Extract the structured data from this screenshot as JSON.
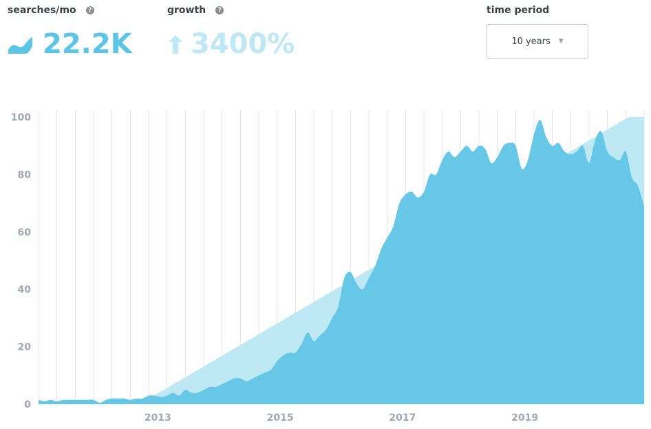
{
  "stats": {
    "searches": {
      "label": "searches/mo",
      "value": "22.2K",
      "help": "?"
    },
    "growth": {
      "label": "growth",
      "value": "3400%",
      "help": "?"
    }
  },
  "time_period": {
    "label": "time period",
    "selected": "10 years"
  },
  "colors": {
    "area": "#66c7e6",
    "trend": "#bfe8f5",
    "grid": "#e4e6ea",
    "axis_text": "#a1a8b3"
  },
  "chart_data": {
    "type": "area",
    "title": "",
    "xlabel": "",
    "ylabel": "",
    "xlim": [
      2011.05,
      2020.95
    ],
    "ylim": [
      0,
      100
    ],
    "yticks": [
      0,
      20,
      40,
      60,
      80,
      100
    ],
    "xticks": [
      {
        "value": 2013,
        "label": "2013"
      },
      {
        "value": 2015,
        "label": "2015"
      },
      {
        "value": 2017,
        "label": "2017"
      },
      {
        "value": 2019,
        "label": "2019"
      }
    ],
    "grid": "vertical",
    "trend_line": {
      "x": [
        2012.7,
        2020.7
      ],
      "y": [
        0,
        100
      ]
    },
    "series": [
      {
        "type": "area",
        "x": [
          2011.05,
          2011.15,
          2011.25,
          2011.35,
          2011.45,
          2011.55,
          2011.65,
          2011.75,
          2011.85,
          2011.95,
          2012.05,
          2012.15,
          2012.25,
          2012.35,
          2012.45,
          2012.55,
          2012.65,
          2012.75,
          2012.85,
          2012.95,
          2013.05,
          2013.15,
          2013.25,
          2013.35,
          2013.45,
          2013.55,
          2013.65,
          2013.75,
          2013.85,
          2013.95,
          2014.05,
          2014.15,
          2014.25,
          2014.35,
          2014.45,
          2014.55,
          2014.65,
          2014.75,
          2014.85,
          2014.95,
          2015.05,
          2015.15,
          2015.25,
          2015.35,
          2015.45,
          2015.55,
          2015.65,
          2015.75,
          2015.85,
          2015.95,
          2016.05,
          2016.15,
          2016.25,
          2016.35,
          2016.45,
          2016.55,
          2016.65,
          2016.75,
          2016.85,
          2016.95,
          2017.05,
          2017.15,
          2017.25,
          2017.35,
          2017.45,
          2017.55,
          2017.65,
          2017.75,
          2017.85,
          2017.95,
          2018.05,
          2018.15,
          2018.25,
          2018.35,
          2018.45,
          2018.55,
          2018.65,
          2018.75,
          2018.85,
          2018.95,
          2019.05,
          2019.15,
          2019.25,
          2019.35,
          2019.45,
          2019.55,
          2019.65,
          2019.75,
          2019.85,
          2019.95,
          2020.05,
          2020.15,
          2020.25,
          2020.35,
          2020.45,
          2020.55,
          2020.65,
          2020.75,
          2020.85,
          2020.95
        ],
        "y": [
          1.5,
          1,
          1.5,
          1,
          1.5,
          1.5,
          1.5,
          1.5,
          1.5,
          1.5,
          0.5,
          1.5,
          2,
          2,
          2,
          1.5,
          2,
          2,
          3,
          3,
          2.5,
          3,
          4,
          3,
          5,
          4,
          4,
          5,
          6,
          6,
          7,
          8,
          9,
          9,
          8,
          9,
          10,
          11,
          12,
          15,
          17,
          18,
          18,
          21,
          25,
          22,
          24,
          26,
          30,
          34,
          44,
          46,
          42,
          40,
          44,
          48,
          54,
          58,
          62,
          70,
          73,
          74,
          72,
          74,
          80,
          80,
          85,
          88,
          86,
          88,
          90,
          88,
          90,
          89,
          84,
          86,
          90,
          91,
          90,
          82,
          85,
          94,
          99,
          93,
          90,
          91,
          88,
          87,
          88,
          90,
          84,
          92,
          95,
          88,
          86,
          85,
          88,
          79,
          76,
          69
        ]
      }
    ]
  }
}
